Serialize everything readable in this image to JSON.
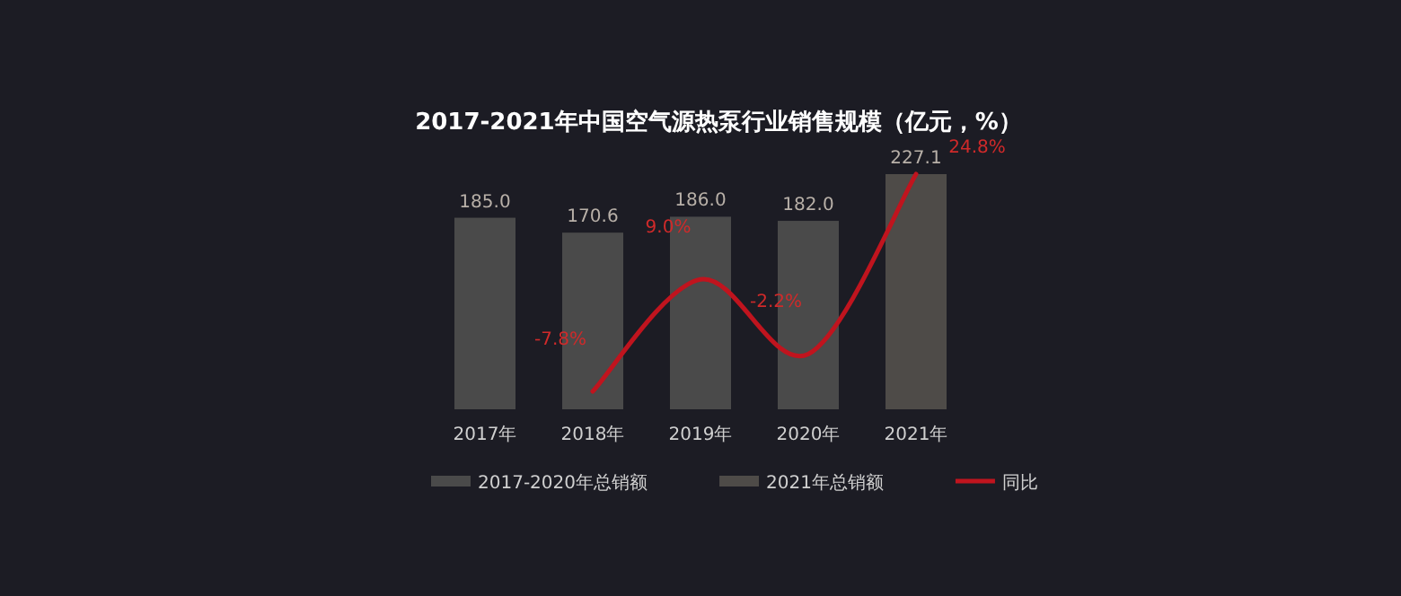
{
  "chart_data": {
    "type": "bar",
    "title": "2017-2021年中国空气源热泵行业销售规模（亿元，%）",
    "categories": [
      "2017年",
      "2018年",
      "2019年",
      "2020年",
      "2021年"
    ],
    "legend": "bottom",
    "series": [
      {
        "name": "2017-2020年总销额",
        "color": "#4a4a4a",
        "values": [
          185.0,
          170.6,
          186.0,
          182.0,
          null
        ],
        "value_labels": [
          "185.0",
          "170.6",
          "186.0",
          "182.0",
          null
        ]
      },
      {
        "name": "2021年总销额",
        "color": "#4e4b48",
        "values": [
          null,
          null,
          null,
          null,
          227.1
        ],
        "value_labels": [
          null,
          null,
          null,
          null,
          "227.1"
        ]
      },
      {
        "name": "同比",
        "type": "line",
        "axis": "y2",
        "color": "#c0141e",
        "values": [
          null,
          -7.8,
          9.0,
          -2.2,
          24.8
        ],
        "value_labels": [
          null,
          "-7.8%",
          "9.0%",
          "-2.2%",
          "24.8%"
        ]
      }
    ]
  }
}
